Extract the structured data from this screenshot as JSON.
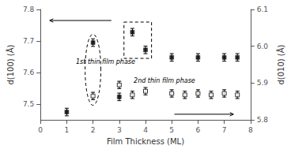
{
  "chart_data": {
    "type": "scatter",
    "xlabel": "Film Thickness (ML)",
    "ylabel": "d(100) (Å)",
    "y2label": "d(010) (Å)",
    "xlim": [
      0,
      8
    ],
    "ylim": [
      7.45,
      7.8
    ],
    "y2lim": [
      5.8,
      6.1
    ],
    "xticks": [
      0,
      1,
      2,
      3,
      4,
      5,
      6,
      7,
      8
    ],
    "yticks": [
      7.5,
      7.6,
      7.7,
      7.8
    ],
    "y2ticks": [
      5.8,
      5.9,
      {
        "value": 6.0,
        "label": "6.0"
      },
      6.1
    ],
    "grid": false,
    "series": [
      {
        "x": [
          1,
          2,
          3,
          3.5,
          4,
          5,
          6,
          7,
          7.5
        ],
        "values": [
          7.475,
          7.695,
          7.523,
          7.728,
          7.672,
          7.648,
          7.648,
          7.648,
          7.648
        ],
        "errors": [
          0.012,
          0.012,
          0.012,
          0.012,
          0.012,
          0.012,
          0.012,
          0.012,
          0.012
        ],
        "marker": "square",
        "color": "black"
      },
      {
        "x": [
          2,
          3,
          3.5,
          4,
          5,
          5.5,
          6,
          6.5,
          7,
          7.5
        ],
        "values": [
          5.865,
          5.895,
          5.868,
          5.878,
          5.872,
          5.868,
          5.872,
          5.868,
          5.872,
          5.868
        ],
        "errors": [
          0.01,
          0.01,
          0.01,
          0.01,
          0.01,
          0.01,
          0.01,
          0.01,
          0.01,
          0.01
        ],
        "marker": "open_square",
        "color": "black",
        "axis": "y2"
      }
    ],
    "annotations": [
      {
        "text": "1st thin film phase",
        "x": 1.35,
        "y": 7.635
      },
      {
        "text": "2nd thin film phase",
        "x": 3.55,
        "y": 7.575
      }
    ],
    "shapes": [
      {
        "type": "ellipse",
        "cx": 2.0,
        "cy": 7.609,
        "width": 0.6,
        "height": 0.225
      },
      {
        "type": "rectangle",
        "x0": 3.18,
        "y0": 7.645,
        "width": 1.05,
        "height": 0.115
      }
    ],
    "arrows": [
      {
        "tail": [
          2.7,
          7.765
        ],
        "head": [
          0.35,
          7.765
        ]
      },
      {
        "tail": [
          5.1,
          7.468
        ],
        "head": [
          7.35,
          7.468
        ]
      }
    ]
  }
}
